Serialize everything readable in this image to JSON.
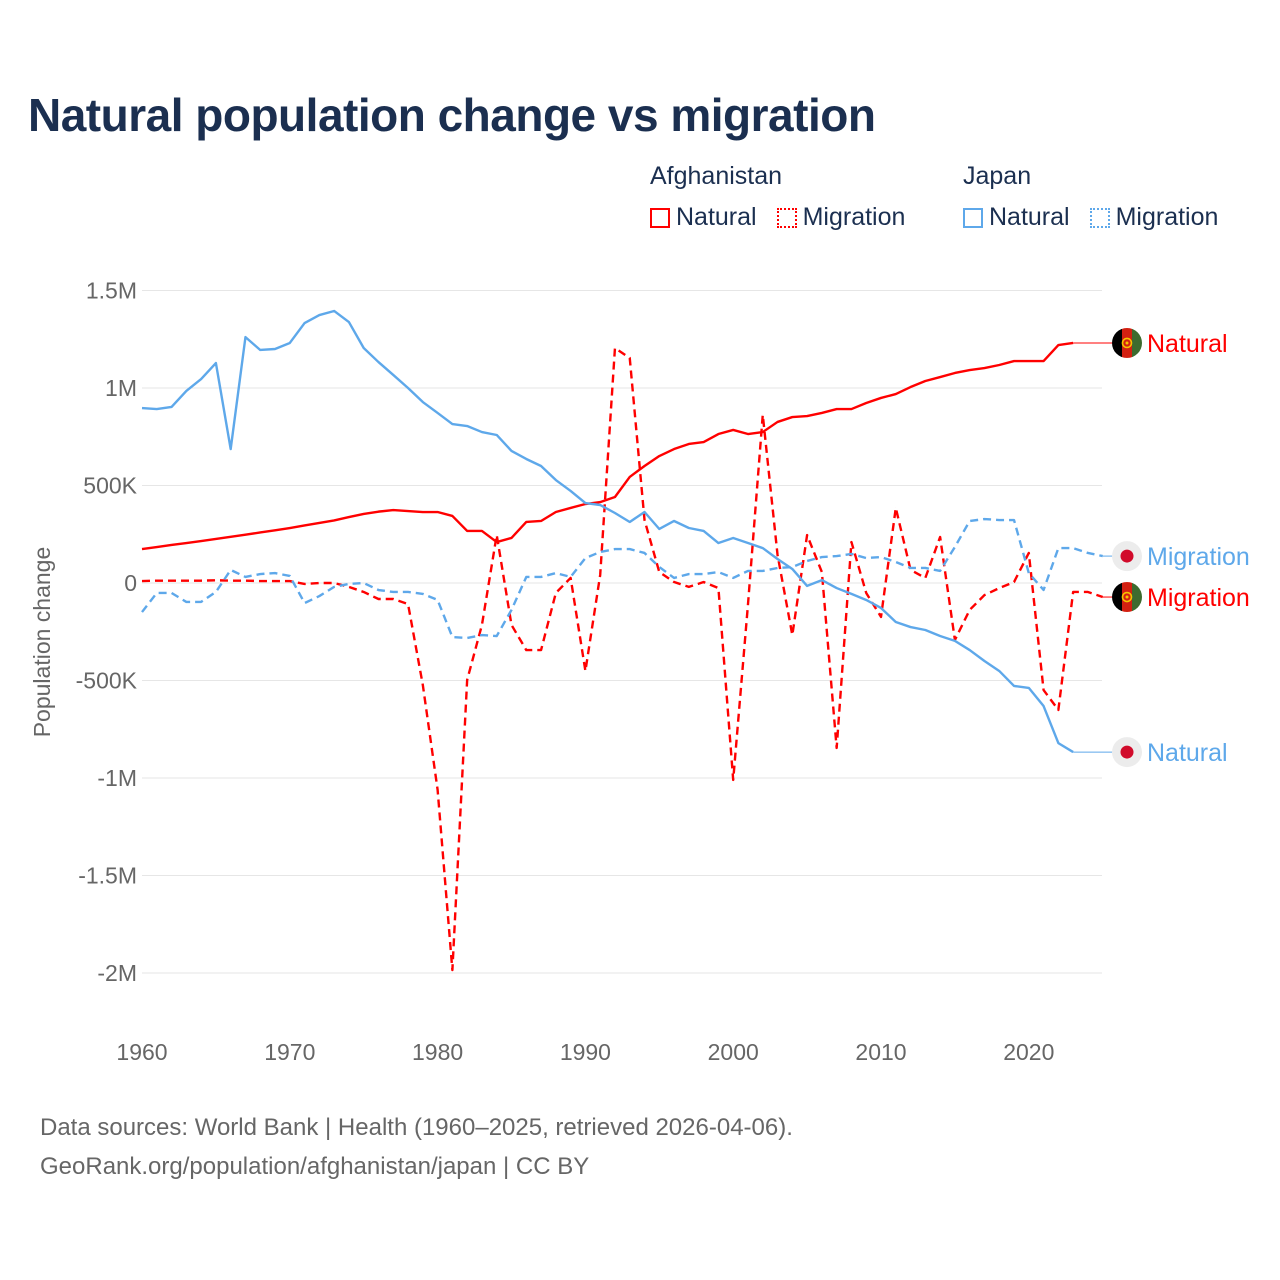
{
  "title": "Natural population change vs migration",
  "legend": {
    "groups": [
      {
        "name": "Afghanistan",
        "color": "#ff0000",
        "items": [
          "Natural",
          "Migration"
        ]
      },
      {
        "name": "Japan",
        "color": "#5ea8ea",
        "items": [
          "Natural",
          "Migration"
        ]
      }
    ]
  },
  "footer": {
    "line1": "Data sources: World Bank | Health (1960–2025, retrieved 2026-04-06).",
    "line2": "GeoRank.org/population/afghanistan/japan | CC BY"
  },
  "chart_data": {
    "type": "line",
    "title": "Natural population change vs migration",
    "xlabel": "",
    "ylabel": "Population change",
    "xlim": [
      1960,
      2025
    ],
    "ylim": [
      -2000000,
      1500000
    ],
    "x_ticks": [
      1960,
      1970,
      1980,
      1990,
      2000,
      2010,
      2020
    ],
    "x_tick_labels": [
      "1960",
      "1970",
      "1980",
      "1990",
      "2000",
      "2010",
      "2020"
    ],
    "y_ticks": [
      1500000,
      1000000,
      500000,
      0,
      -500000,
      -1000000,
      -1500000,
      -2000000
    ],
    "y_tick_labels": [
      "1.5M",
      "1M",
      "500K",
      "0",
      "-500K",
      "-1M",
      "-1.5M",
      "-2M"
    ],
    "grid": true,
    "legend_position": "top-right",
    "series": [
      {
        "name": "Afghanistan Natural",
        "country": "Afghanistan",
        "label": "Natural",
        "flag": "afghanistan-flag",
        "color": "#ff0000",
        "dashed": false,
        "start_year": 1960,
        "values": [
          174000,
          184000,
          195000,
          205000,
          215000,
          226000,
          237000,
          248000,
          259000,
          270000,
          282000,
          295000,
          308000,
          321000,
          338000,
          354000,
          366000,
          374000,
          369000,
          364000,
          364000,
          344000,
          267000,
          267000,
          210000,
          231000,
          313000,
          318000,
          364000,
          385000,
          405000,
          415000,
          441000,
          544000,
          600000,
          651000,
          687000,
          713000,
          723000,
          764000,
          785000,
          764000,
          774000,
          826000,
          851000,
          856000,
          872000,
          892000,
          892000,
          923000,
          949000,
          969000,
          1005000,
          1036000,
          1056000,
          1077000,
          1092000,
          1102000,
          1118000,
          1138000,
          1138000,
          1138000,
          1220000,
          1231000
        ]
      },
      {
        "name": "Afghanistan Migration",
        "country": "Afghanistan",
        "label": "Migration",
        "flag": "afghanistan-flag",
        "color": "#ff0000",
        "dashed": true,
        "start_year": 1960,
        "values": [
          10000,
          12000,
          12000,
          12000,
          12000,
          14000,
          12000,
          12000,
          10000,
          10000,
          10000,
          -5000,
          0,
          0,
          -20000,
          -46000,
          -82000,
          -82000,
          -108000,
          -523000,
          -1060000,
          -1985000,
          -497000,
          -215000,
          246000,
          -215000,
          -344000,
          -344000,
          -51000,
          26000,
          -451000,
          41000,
          1205000,
          1154000,
          323000,
          56000,
          5000,
          -20000,
          5000,
          -26000,
          -1010000,
          -110000,
          862000,
          144000,
          -267000,
          246000,
          56000,
          -846000,
          210000,
          -51000,
          -174000,
          385000,
          67000,
          26000,
          236000,
          -292000,
          -138000,
          -62000,
          -26000,
          5000,
          154000,
          -549000,
          -651000,
          -46000,
          -46000,
          -72000
        ]
      },
      {
        "name": "Japan Natural",
        "country": "Japan",
        "label": "Natural",
        "flag": "japan-flag",
        "color": "#5ea8ea",
        "dashed": false,
        "start_year": 1960,
        "values": [
          897000,
          892000,
          903000,
          985000,
          1046000,
          1128000,
          687000,
          1261000,
          1195000,
          1200000,
          1231000,
          1333000,
          1374000,
          1395000,
          1338000,
          1205000,
          1133000,
          1067000,
          1000000,
          928000,
          872000,
          815000,
          805000,
          774000,
          759000,
          677000,
          636000,
          600000,
          528000,
          472000,
          410000,
          400000,
          359000,
          313000,
          364000,
          277000,
          318000,
          282000,
          267000,
          205000,
          231000,
          205000,
          179000,
          123000,
          72000,
          -15000,
          15000,
          -26000,
          -56000,
          -87000,
          -128000,
          -200000,
          -226000,
          -241000,
          -272000,
          -297000,
          -344000,
          -400000,
          -451000,
          -528000,
          -538000,
          -631000,
          -821000,
          -867000
        ]
      },
      {
        "name": "Japan Migration",
        "country": "Japan",
        "label": "Migration",
        "flag": "japan-flag",
        "color": "#5ea8ea",
        "dashed": true,
        "start_year": 1960,
        "values": [
          -149000,
          -51000,
          -51000,
          -97000,
          -97000,
          -46000,
          67000,
          31000,
          46000,
          51000,
          36000,
          -103000,
          -67000,
          -20000,
          -5000,
          0,
          -36000,
          -46000,
          -46000,
          -56000,
          -87000,
          -277000,
          -282000,
          -267000,
          -272000,
          -138000,
          31000,
          31000,
          51000,
          31000,
          128000,
          159000,
          174000,
          174000,
          154000,
          82000,
          26000,
          46000,
          46000,
          56000,
          26000,
          62000,
          62000,
          77000,
          82000,
          113000,
          133000,
          138000,
          149000,
          128000,
          133000,
          108000,
          77000,
          77000,
          62000,
          185000,
          318000,
          328000,
          323000,
          323000,
          51000,
          -36000,
          179000,
          179000,
          154000,
          138000
        ]
      }
    ]
  }
}
